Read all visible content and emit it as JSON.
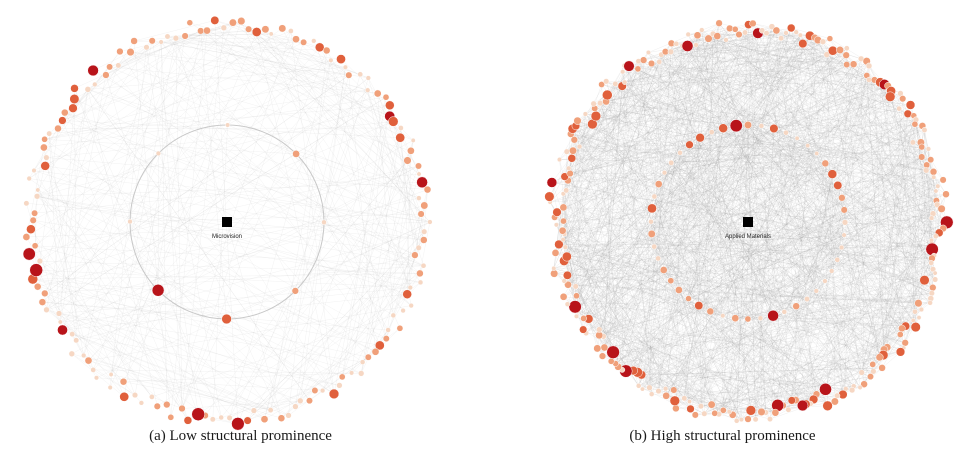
{
  "panels": [
    {
      "id": "a",
      "caption": "(a) Low structural prominence",
      "focal_label": "Microvision",
      "outer_node_count": 150,
      "inner_node_count": 8,
      "edge_density": "light"
    },
    {
      "id": "b",
      "caption": "(b) High structural prominence",
      "focal_label": "Applied Materials",
      "outer_node_count": 260,
      "inner_node_count": 48,
      "edge_density": "dense"
    }
  ],
  "colors": {
    "node_light": "#f6d7c3",
    "node_mid": "#f0a07a",
    "node_strong": "#e0603c",
    "node_dark": "#b8141a",
    "edge": "#9a9a9a",
    "inner_ring": "#c8c8c8",
    "focal": "#000000"
  }
}
